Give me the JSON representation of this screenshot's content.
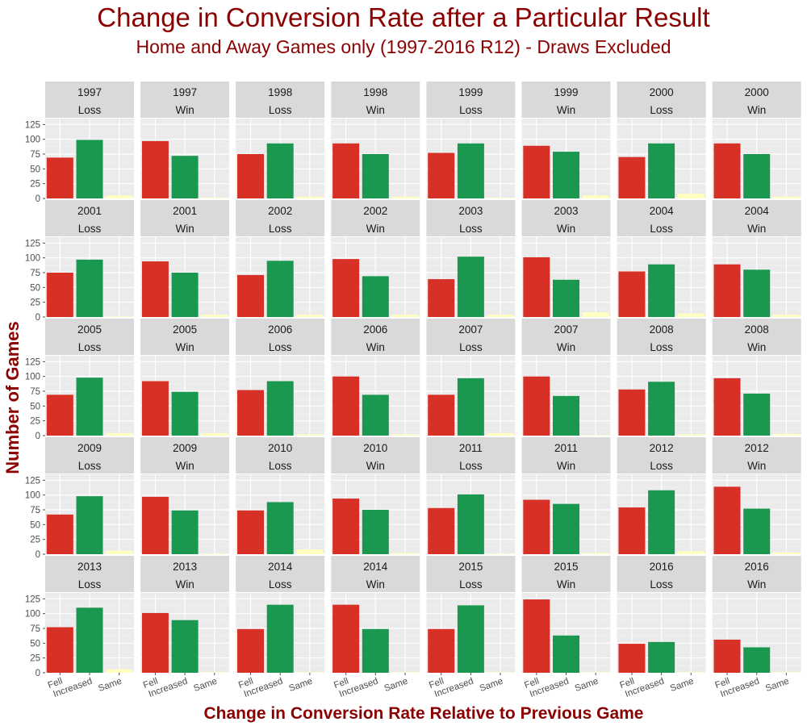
{
  "chart_data": {
    "type": "bar",
    "title": "Change in Conversion Rate after a Particular Result",
    "subtitle": "Home and Away Games only (1997-2016 R12) - Draws Excluded",
    "xlabel": "Change in Conversion Rate Relative to Previous Game",
    "ylabel": "Number of Games",
    "categories": [
      "Fell",
      "Increased",
      "Same"
    ],
    "ylim": [
      0,
      135
    ],
    "yticks": [
      "0",
      "25",
      "50",
      "75",
      "100",
      "125"
    ],
    "colors": {
      "Fell": "#d73027",
      "Increased": "#1a9850",
      "Same": "#ffffbf"
    },
    "panel_background": "#ebebeb",
    "strip_background": "#d9d9d9",
    "panels": [
      {
        "year": "1997",
        "result": "Loss",
        "values": [
          69,
          99,
          5
        ]
      },
      {
        "year": "1997",
        "result": "Win",
        "values": [
          97,
          72,
          1
        ]
      },
      {
        "year": "1998",
        "result": "Loss",
        "values": [
          75,
          93,
          3
        ]
      },
      {
        "year": "1998",
        "result": "Win",
        "values": [
          93,
          75,
          3
        ]
      },
      {
        "year": "1999",
        "result": "Loss",
        "values": [
          77,
          93,
          1
        ]
      },
      {
        "year": "1999",
        "result": "Win",
        "values": [
          89,
          79,
          5
        ]
      },
      {
        "year": "2000",
        "result": "Loss",
        "values": [
          70,
          93,
          8
        ]
      },
      {
        "year": "2000",
        "result": "Win",
        "values": [
          93,
          75,
          3
        ]
      },
      {
        "year": "2001",
        "result": "Loss",
        "values": [
          75,
          97,
          1
        ]
      },
      {
        "year": "2001",
        "result": "Win",
        "values": [
          94,
          75,
          4
        ]
      },
      {
        "year": "2002",
        "result": "Loss",
        "values": [
          71,
          95,
          4
        ]
      },
      {
        "year": "2002",
        "result": "Win",
        "values": [
          98,
          69,
          4
        ]
      },
      {
        "year": "2003",
        "result": "Loss",
        "values": [
          64,
          102,
          4
        ]
      },
      {
        "year": "2003",
        "result": "Win",
        "values": [
          101,
          63,
          8
        ]
      },
      {
        "year": "2004",
        "result": "Loss",
        "values": [
          77,
          89,
          6
        ]
      },
      {
        "year": "2004",
        "result": "Win",
        "values": [
          89,
          80,
          4
        ]
      },
      {
        "year": "2005",
        "result": "Loss",
        "values": [
          69,
          98,
          4
        ]
      },
      {
        "year": "2005",
        "result": "Win",
        "values": [
          92,
          74,
          4
        ]
      },
      {
        "year": "2006",
        "result": "Loss",
        "values": [
          77,
          92,
          2
        ]
      },
      {
        "year": "2006",
        "result": "Win",
        "values": [
          100,
          69,
          2
        ]
      },
      {
        "year": "2007",
        "result": "Loss",
        "values": [
          69,
          97,
          4
        ]
      },
      {
        "year": "2007",
        "result": "Win",
        "values": [
          100,
          67,
          1
        ]
      },
      {
        "year": "2008",
        "result": "Loss",
        "values": [
          78,
          91,
          2
        ]
      },
      {
        "year": "2008",
        "result": "Win",
        "values": [
          97,
          71,
          3
        ]
      },
      {
        "year": "2009",
        "result": "Loss",
        "values": [
          67,
          98,
          6
        ]
      },
      {
        "year": "2009",
        "result": "Win",
        "values": [
          97,
          74,
          1
        ]
      },
      {
        "year": "2010",
        "result": "Loss",
        "values": [
          74,
          88,
          8
        ]
      },
      {
        "year": "2010",
        "result": "Win",
        "values": [
          94,
          75,
          2
        ]
      },
      {
        "year": "2011",
        "result": "Loss",
        "values": [
          78,
          101,
          1
        ]
      },
      {
        "year": "2011",
        "result": "Win",
        "values": [
          92,
          85,
          2
        ]
      },
      {
        "year": "2012",
        "result": "Loss",
        "values": [
          79,
          108,
          5
        ]
      },
      {
        "year": "2012",
        "result": "Win",
        "values": [
          114,
          77,
          3
        ]
      },
      {
        "year": "2013",
        "result": "Loss",
        "values": [
          77,
          110,
          6
        ]
      },
      {
        "year": "2013",
        "result": "Win",
        "values": [
          101,
          89,
          1
        ]
      },
      {
        "year": "2014",
        "result": "Loss",
        "values": [
          74,
          115,
          1
        ]
      },
      {
        "year": "2014",
        "result": "Win",
        "values": [
          115,
          74,
          1
        ]
      },
      {
        "year": "2015",
        "result": "Loss",
        "values": [
          74,
          114,
          1
        ]
      },
      {
        "year": "2015",
        "result": "Win",
        "values": [
          124,
          63,
          1
        ]
      },
      {
        "year": "2016",
        "result": "Loss",
        "values": [
          49,
          52,
          1
        ]
      },
      {
        "year": "2016",
        "result": "Win",
        "values": [
          56,
          43,
          1
        ]
      }
    ]
  }
}
